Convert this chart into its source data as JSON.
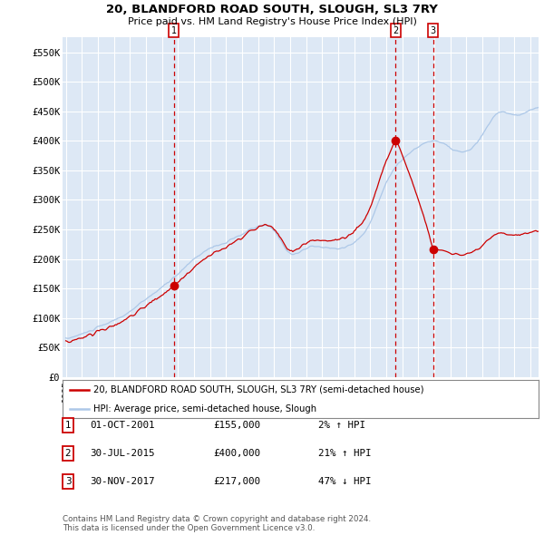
{
  "title1": "20, BLANDFORD ROAD SOUTH, SLOUGH, SL3 7RY",
  "title2": "Price paid vs. HM Land Registry's House Price Index (HPI)",
  "ylim": [
    0,
    575000
  ],
  "yticks": [
    0,
    50000,
    100000,
    150000,
    200000,
    250000,
    300000,
    350000,
    400000,
    450000,
    500000,
    550000
  ],
  "ytick_labels": [
    "£0",
    "£50K",
    "£100K",
    "£150K",
    "£200K",
    "£250K",
    "£300K",
    "£350K",
    "£400K",
    "£450K",
    "£500K",
    "£550K"
  ],
  "hpi_color": "#adc8e8",
  "price_color": "#cc0000",
  "background_color": "#dde8f5",
  "grid_color": "#ffffff",
  "legend_label_price": "20, BLANDFORD ROAD SOUTH, SLOUGH, SL3 7RY (semi-detached house)",
  "legend_label_hpi": "HPI: Average price, semi-detached house, Slough",
  "sale1_date_label": "01-OCT-2001",
  "sale1_price_label": "£155,000",
  "sale1_hpi_label": "2% ↑ HPI",
  "sale1_year": 2001.75,
  "sale1_price": 155000,
  "sale2_date_label": "30-JUL-2015",
  "sale2_price_label": "£400,000",
  "sale2_hpi_label": "21% ↑ HPI",
  "sale2_year": 2015.58,
  "sale2_price": 400000,
  "sale3_date_label": "30-NOV-2017",
  "sale3_price_label": "£217,000",
  "sale3_hpi_label": "47% ↓ HPI",
  "sale3_year": 2017.92,
  "sale3_price": 217000,
  "footer1": "Contains HM Land Registry data © Crown copyright and database right 2024.",
  "footer2": "This data is licensed under the Open Government Licence v3.0.",
  "xstart": 1995,
  "xend": 2024
}
